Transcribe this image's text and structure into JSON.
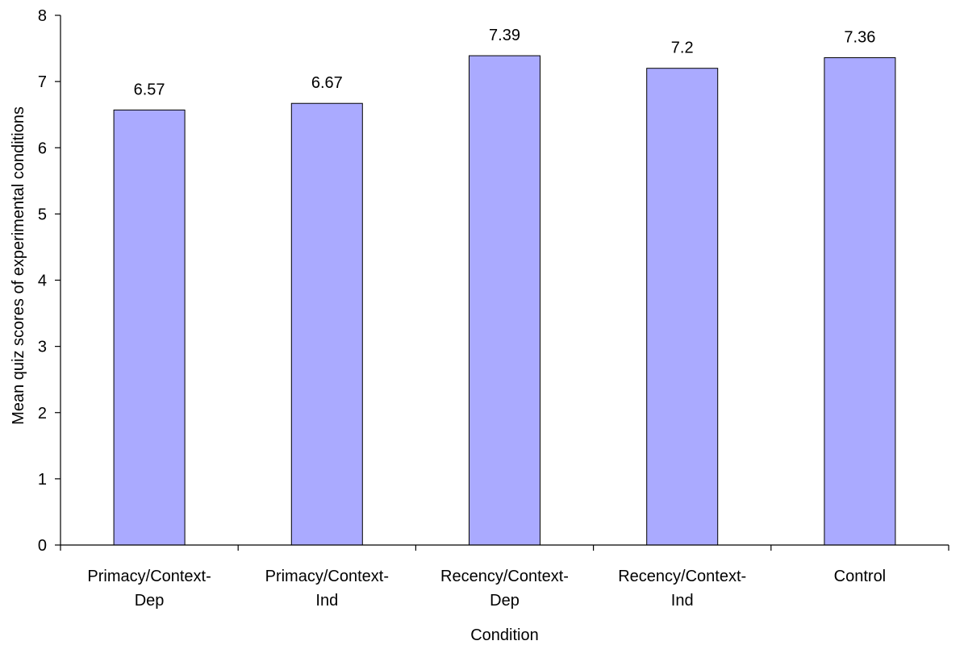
{
  "chart_data": {
    "type": "bar",
    "categories": [
      [
        "Primacy/Context-",
        "Dep"
      ],
      [
        "Primacy/Context-",
        "Ind"
      ],
      [
        "Recency/Context-",
        "Dep"
      ],
      [
        "Recency/Context-",
        "Ind"
      ],
      [
        "Control"
      ]
    ],
    "values": [
      6.57,
      6.67,
      7.39,
      7.2,
      7.36
    ],
    "data_labels": [
      "6.57",
      "6.67",
      "7.39",
      "7.2",
      "7.36"
    ],
    "xlabel": "Condition",
    "ylabel": "Mean quiz scores of experimental conditions",
    "ylim": [
      0,
      8
    ],
    "yticks": [
      0,
      1,
      2,
      3,
      4,
      5,
      6,
      7,
      8
    ],
    "grid": false,
    "legend": "none",
    "bar_color": "#aaaaff"
  }
}
